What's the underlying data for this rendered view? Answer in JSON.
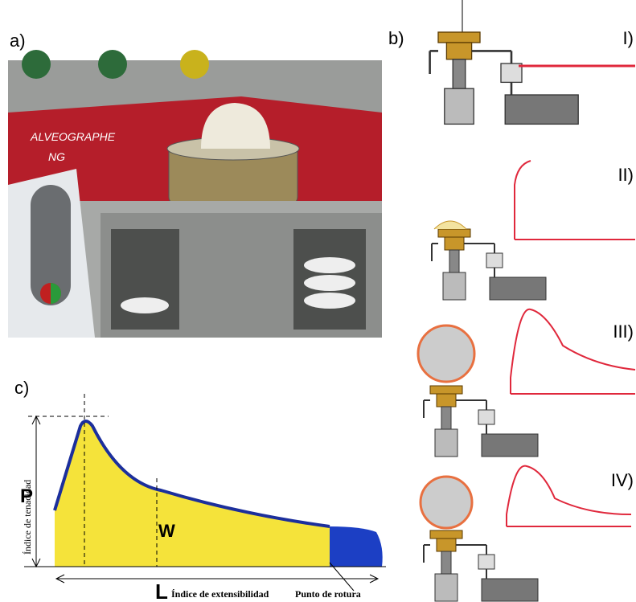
{
  "panels": {
    "a": {
      "label": "a)",
      "device_name": "ALVEOGRAPHE",
      "device_model": "NG"
    },
    "b": {
      "label": "b)",
      "stages": [
        "I)",
        "II)",
        "III)",
        "IV)"
      ]
    },
    "c": {
      "label": "c)",
      "p": "P",
      "w": "W",
      "l": "L",
      "y_axis": "Índice de tenacidad",
      "x_axis": "Índice de extensibilidad",
      "break_point": "Punto de rotura"
    }
  }
}
